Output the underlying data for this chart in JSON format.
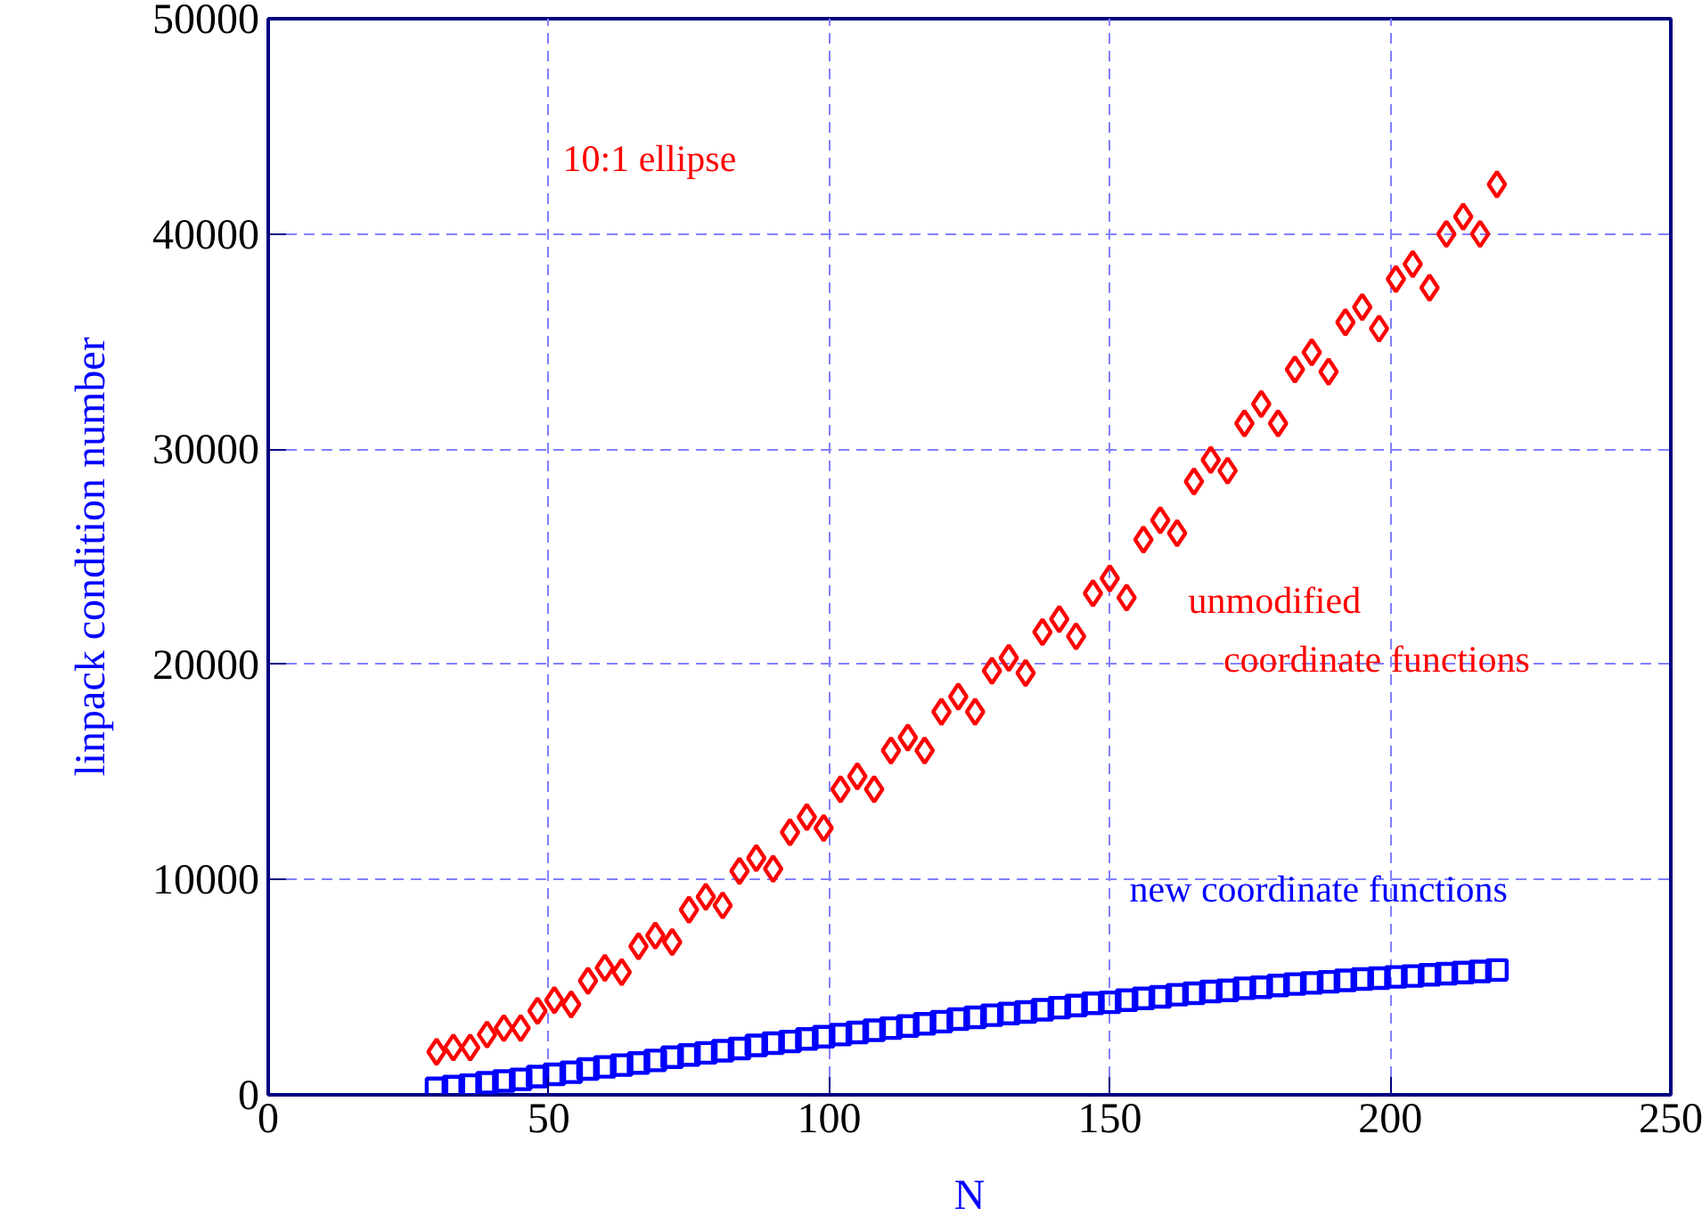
{
  "chart_data": {
    "type": "scatter",
    "xlabel": "N",
    "ylabel": "linpack condition number",
    "x": [
      30,
      33,
      36,
      39,
      42,
      45,
      48,
      51,
      54,
      57,
      60,
      63,
      66,
      69,
      72,
      75,
      78,
      81,
      84,
      87,
      90,
      93,
      96,
      99,
      102,
      105,
      108,
      111,
      114,
      117,
      120,
      123,
      126,
      129,
      132,
      135,
      138,
      141,
      144,
      147,
      150,
      153,
      156,
      159,
      162,
      165,
      168,
      171,
      174,
      177,
      180,
      183,
      186,
      189,
      192,
      195,
      198,
      201,
      204,
      207,
      210,
      213,
      216,
      219
    ],
    "series": [
      {
        "name": "unmodified coordinate functions",
        "color": "#ff0000",
        "marker": "diamond",
        "values": [
          2000,
          2200,
          2200,
          2800,
          3100,
          3100,
          3900,
          4400,
          4200,
          5300,
          5900,
          5700,
          6900,
          7400,
          7100,
          8600,
          9200,
          8800,
          10400,
          11000,
          10500,
          12200,
          12900,
          12400,
          14200,
          14800,
          14200,
          16000,
          16600,
          16000,
          17800,
          18500,
          17800,
          19700,
          20300,
          19600,
          21500,
          22100,
          21300,
          23300,
          24000,
          23100,
          25800,
          26700,
          26100,
          28500,
          29500,
          29000,
          31200,
          32100,
          31200,
          33700,
          34500,
          33600,
          35900,
          36600,
          35600,
          37900,
          38600,
          37500,
          40000,
          40800,
          40000,
          42300
        ]
      },
      {
        "name": "new coordinate functions",
        "color": "#0000ff",
        "marker": "square",
        "values": [
          300,
          380,
          450,
          560,
          640,
          720,
          850,
          950,
          1050,
          1200,
          1300,
          1380,
          1480,
          1600,
          1750,
          1850,
          1950,
          2050,
          2150,
          2300,
          2400,
          2480,
          2600,
          2700,
          2800,
          2900,
          3000,
          3100,
          3200,
          3300,
          3400,
          3520,
          3600,
          3700,
          3780,
          3850,
          3950,
          4050,
          4150,
          4250,
          4300,
          4400,
          4480,
          4550,
          4650,
          4720,
          4800,
          4850,
          4950,
          5000,
          5080,
          5150,
          5200,
          5250,
          5320,
          5380,
          5420,
          5480,
          5520,
          5580,
          5630,
          5680,
          5730,
          5800
        ]
      }
    ],
    "annotations": [
      "10:1 ellipse"
    ],
    "xlim": [
      0,
      250
    ],
    "xticks": [
      0,
      50,
      100,
      150,
      200,
      250
    ],
    "ylim": [
      0,
      50000
    ],
    "yticks": [
      0,
      10000,
      20000,
      30000,
      40000,
      50000
    ],
    "grid": true
  }
}
